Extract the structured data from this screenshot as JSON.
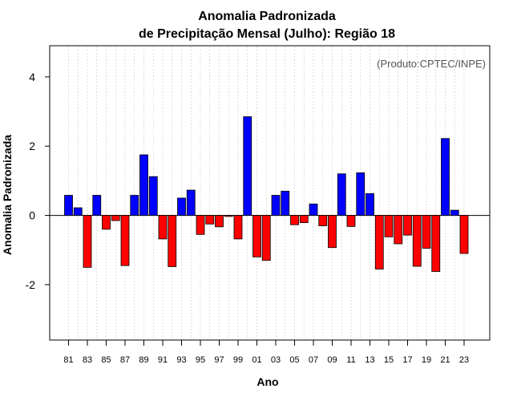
{
  "chart_data": {
    "type": "bar",
    "title_line1": "Anomalia Padronizada",
    "title_line2": "de Precipitação Mensal (Julho): Região 18",
    "xlabel": "Ano",
    "ylabel": "Anomalia Padronizada",
    "credit": "(Produto:CPTEC/INPE)",
    "ylim": [
      -3.6,
      4.9
    ],
    "yticks": [
      -2,
      0,
      2,
      4
    ],
    "ytick_labels": [
      "-2",
      "0",
      "2",
      "4"
    ],
    "categories": [
      "81",
      "82",
      "83",
      "84",
      "85",
      "86",
      "87",
      "88",
      "89",
      "90",
      "91",
      "92",
      "93",
      "94",
      "95",
      "96",
      "97",
      "98",
      "99",
      "00",
      "01",
      "02",
      "03",
      "04",
      "05",
      "06",
      "07",
      "08",
      "09",
      "10",
      "11",
      "12",
      "13",
      "14",
      "15",
      "16",
      "17",
      "18",
      "19",
      "20",
      "21",
      "22",
      "23"
    ],
    "xtick_labels": [
      "81",
      "83",
      "85",
      "87",
      "89",
      "91",
      "93",
      "95",
      "97",
      "99",
      "01",
      "03",
      "05",
      "07",
      "09",
      "11",
      "13",
      "15",
      "17",
      "19",
      "21",
      "23"
    ],
    "values": [
      0.58,
      0.22,
      -1.5,
      0.58,
      -0.4,
      -0.15,
      -1.45,
      0.58,
      1.75,
      1.12,
      -0.68,
      -1.48,
      0.5,
      0.73,
      -0.55,
      -0.25,
      -0.33,
      -0.03,
      -0.68,
      2.85,
      -1.2,
      -1.3,
      0.58,
      0.7,
      -0.27,
      -0.21,
      0.33,
      -0.3,
      -0.93,
      1.2,
      -0.32,
      1.23,
      0.63,
      -1.55,
      -0.62,
      -0.82,
      -0.57,
      -1.47,
      -0.95,
      -1.62,
      2.22,
      0.15,
      -1.1
    ],
    "positive_color": "#0000ff",
    "negative_color": "#ff0000",
    "grid": true
  }
}
